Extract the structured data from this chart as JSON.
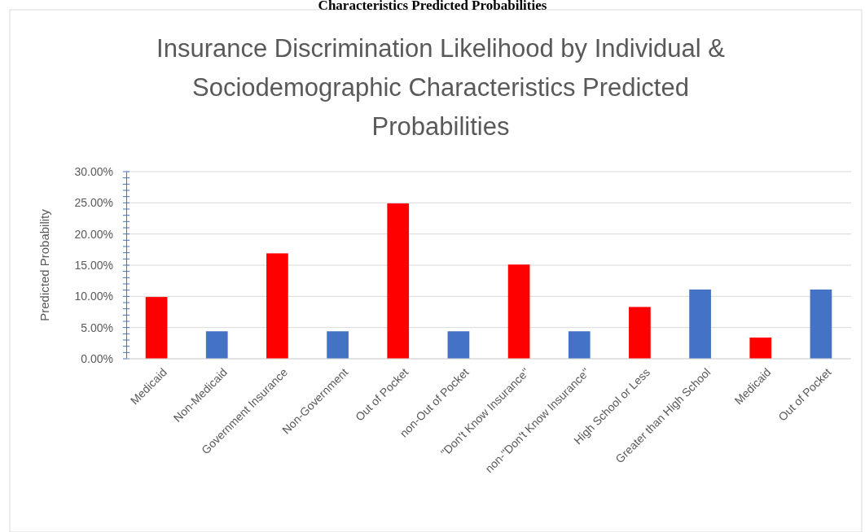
{
  "chart_data": {
    "type": "bar",
    "title": "Insurance Discrimination Likelihood by Individual & Sociodemographic Characteristics Predicted Probabilities",
    "annotations": [
      "Characteristics Predicted Probabilities"
    ],
    "ylabel": "Predicted Probability",
    "categories": [
      "Medicaid",
      "Non-Medicaid",
      "Government Insurance",
      "Non-Government",
      "Out of Pocket",
      "non-Out of Pocket",
      "\"Don't Know Insurance\"",
      "non-\"Don't Know Insurance\"",
      "High School or Less",
      "Greater than High School",
      "Medicaid",
      "Out of Pocket"
    ],
    "values": [
      9.9,
      4.4,
      16.9,
      4.4,
      24.9,
      4.4,
      15.1,
      4.4,
      8.3,
      11.1,
      3.4,
      11.1
    ],
    "colors": [
      "#ff0000",
      "#4472c4",
      "#ff0000",
      "#4472c4",
      "#ff0000",
      "#4472c4",
      "#ff0000",
      "#4472c4",
      "#ff0000",
      "#4472c4",
      "#ff0000",
      "#4472c4"
    ],
    "ylim": [
      0,
      30
    ],
    "yticks": [
      {
        "value": 0,
        "label": "0.00%"
      },
      {
        "value": 5,
        "label": "5.00%"
      },
      {
        "value": 10,
        "label": "10.00%"
      },
      {
        "value": 15,
        "label": "15.00%"
      },
      {
        "value": 20,
        "label": "20.00%"
      },
      {
        "value": 25,
        "label": "25.00%"
      },
      {
        "value": 30,
        "label": "30.00%"
      }
    ],
    "grid": "y"
  }
}
